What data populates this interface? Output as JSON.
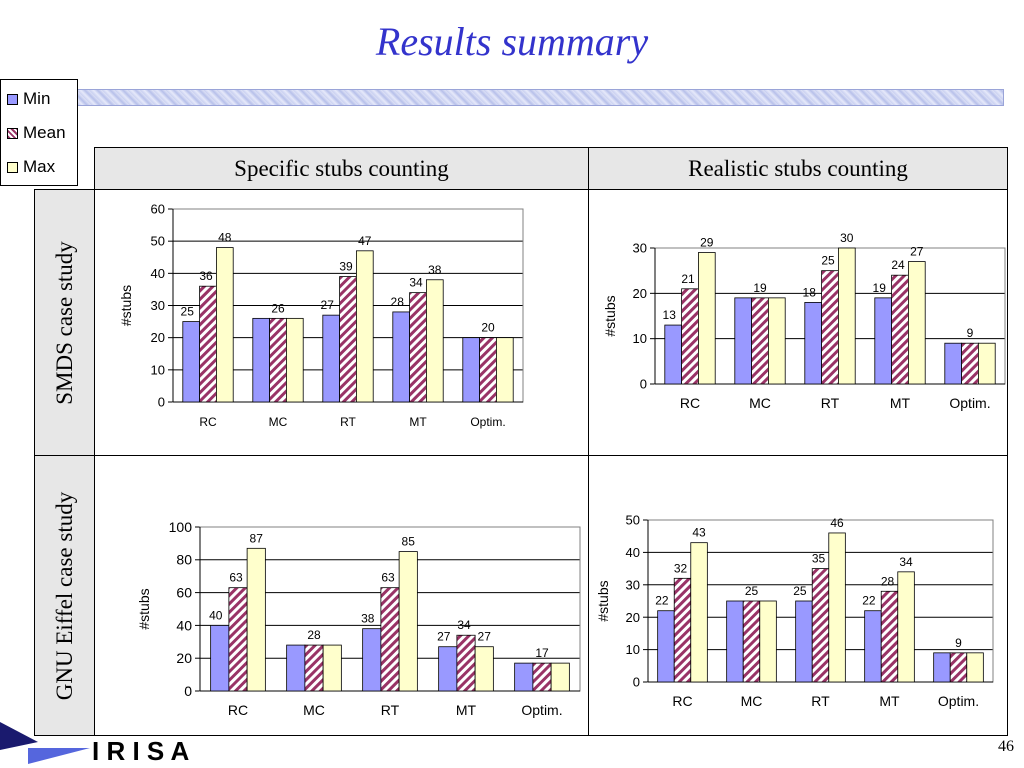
{
  "title": "Results summary",
  "legend": [
    {
      "label": "Min",
      "color": "#9999ff"
    },
    {
      "label": "Mean",
      "color": "#993366"
    },
    {
      "label": "Max",
      "color": "#ffffcc"
    }
  ],
  "table": {
    "col_headers": [
      "Specific stubs counting",
      "Realistic stubs counting"
    ],
    "row_headers": [
      "SMDS case study",
      "GNU Eiffel case study"
    ]
  },
  "logo_text": "I R I S A",
  "page_number": "46",
  "chart_data": [
    {
      "type": "bar",
      "categories": [
        "RC",
        "MC",
        "RT",
        "MT",
        "Optim."
      ],
      "series": [
        {
          "name": "Min",
          "values": [
            25,
            26,
            27,
            28,
            20
          ]
        },
        {
          "name": "Mean",
          "values": [
            36,
            26,
            39,
            34,
            20
          ]
        },
        {
          "name": "Max",
          "values": [
            48,
            26,
            47,
            38,
            20
          ]
        }
      ],
      "data_labels": [
        [
          "25",
          "36",
          "48"
        ],
        [
          "26"
        ],
        [
          "27",
          "39",
          "47"
        ],
        [
          "28",
          "34",
          "38"
        ],
        [
          "20"
        ]
      ],
      "ylabel": "#stubs",
      "ylim": [
        0,
        60
      ],
      "yticks": [
        0,
        10,
        20,
        30,
        40,
        50,
        60
      ],
      "grid": true
    },
    {
      "type": "bar",
      "categories": [
        "RC",
        "MC",
        "RT",
        "MT",
        "Optim."
      ],
      "series": [
        {
          "name": "Min",
          "values": [
            13,
            19,
            18,
            19,
            9
          ]
        },
        {
          "name": "Mean",
          "values": [
            21,
            19,
            25,
            24,
            9
          ]
        },
        {
          "name": "Max",
          "values": [
            29,
            19,
            30,
            27,
            9
          ]
        }
      ],
      "data_labels": [
        [
          "13",
          "21",
          "29"
        ],
        [
          "19"
        ],
        [
          "18",
          "25",
          "30"
        ],
        [
          "19",
          "24",
          "27"
        ],
        [
          "9"
        ]
      ],
      "ylabel": "#stubs",
      "ylim": [
        0,
        30
      ],
      "yticks": [
        0,
        10,
        20,
        30
      ],
      "grid": true
    },
    {
      "type": "bar",
      "categories": [
        "RC",
        "MC",
        "RT",
        "MT",
        "Optim."
      ],
      "series": [
        {
          "name": "Min",
          "values": [
            40,
            28,
            38,
            27,
            17
          ]
        },
        {
          "name": "Mean",
          "values": [
            63,
            28,
            63,
            34,
            17
          ]
        },
        {
          "name": "Max",
          "values": [
            87,
            28,
            85,
            27,
            17
          ]
        }
      ],
      "data_labels": [
        [
          "40",
          "63",
          "87"
        ],
        [
          "28"
        ],
        [
          "38",
          "63",
          "85"
        ],
        [
          "27",
          "34",
          "27"
        ],
        [
          "17"
        ]
      ],
      "ylabel": "#stubs",
      "ylim": [
        0,
        100
      ],
      "yticks": [
        0,
        20,
        40,
        60,
        80,
        100
      ],
      "grid": true
    },
    {
      "type": "bar",
      "categories": [
        "RC",
        "MC",
        "RT",
        "MT",
        "Optim."
      ],
      "series": [
        {
          "name": "Min",
          "values": [
            22,
            25,
            25,
            22,
            9
          ]
        },
        {
          "name": "Mean",
          "values": [
            32,
            25,
            35,
            28,
            9
          ]
        },
        {
          "name": "Max",
          "values": [
            43,
            25,
            46,
            34,
            9
          ]
        }
      ],
      "data_labels": [
        [
          "22",
          "32",
          "43"
        ],
        [
          "25"
        ],
        [
          "25",
          "35",
          "46"
        ],
        [
          "22",
          "28",
          "34"
        ],
        [
          "9"
        ]
      ],
      "ylabel": "#stubs",
      "ylim": [
        0,
        50
      ],
      "yticks": [
        0,
        10,
        20,
        30,
        40,
        50
      ],
      "grid": true
    }
  ]
}
